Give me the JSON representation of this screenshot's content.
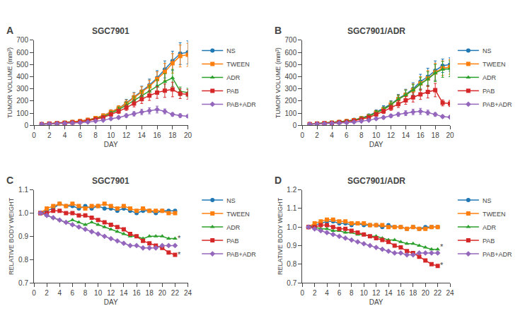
{
  "chart_data": [
    {
      "type": "line",
      "panel_label": "A",
      "title": "SGC7901",
      "xlabel": "DAY",
      "ylabel": "TUMOR VOLUME (mm³)",
      "xlim": [
        0,
        20
      ],
      "ylim": [
        0,
        700
      ],
      "xticks": [
        0,
        2,
        4,
        6,
        8,
        10,
        12,
        14,
        16,
        18,
        20
      ],
      "yticks": [
        0,
        100,
        200,
        300,
        400,
        500,
        600,
        700
      ],
      "grid": false,
      "legend": "right",
      "x": [
        1,
        2,
        3,
        4,
        5,
        6,
        7,
        8,
        9,
        10,
        11,
        12,
        13,
        14,
        15,
        16,
        17,
        18,
        19,
        20
      ],
      "series": [
        {
          "name": "NS",
          "marker": "circle",
          "values": [
            10,
            15,
            18,
            22,
            28,
            35,
            45,
            60,
            80,
            110,
            140,
            185,
            235,
            280,
            330,
            390,
            460,
            530,
            590,
            600
          ],
          "error": [
            3,
            4,
            4,
            5,
            6,
            7,
            8,
            10,
            13,
            18,
            22,
            28,
            35,
            42,
            50,
            60,
            70,
            80,
            90,
            95
          ]
        },
        {
          "name": "TWEEN",
          "marker": "square",
          "values": [
            10,
            15,
            18,
            22,
            28,
            35,
            45,
            60,
            80,
            110,
            140,
            180,
            230,
            275,
            320,
            380,
            440,
            510,
            570,
            580
          ],
          "error": [
            3,
            4,
            4,
            5,
            6,
            7,
            8,
            10,
            13,
            18,
            22,
            28,
            35,
            42,
            50,
            60,
            70,
            80,
            90,
            95
          ]
        },
        {
          "name": "ADR",
          "marker": "triangle-up",
          "values": [
            10,
            14,
            17,
            20,
            25,
            30,
            40,
            55,
            70,
            100,
            130,
            165,
            205,
            245,
            280,
            320,
            360,
            390,
            280,
            270
          ],
          "error": [
            2,
            3,
            3,
            4,
            5,
            6,
            7,
            9,
            12,
            16,
            20,
            25,
            30,
            38,
            45,
            55,
            65,
            70,
            35,
            35
          ]
        },
        {
          "name": "PAB",
          "marker": "square",
          "values": [
            10,
            14,
            17,
            20,
            24,
            30,
            38,
            50,
            65,
            90,
            115,
            145,
            180,
            215,
            245,
            270,
            285,
            295,
            260,
            255
          ],
          "error": [
            2,
            3,
            3,
            4,
            5,
            6,
            7,
            9,
            11,
            15,
            18,
            22,
            28,
            35,
            40,
            48,
            55,
            60,
            40,
            40
          ]
        },
        {
          "name": "PAB+ADR",
          "marker": "diamond",
          "values": [
            10,
            12,
            14,
            16,
            19,
            22,
            27,
            35,
            42,
            55,
            65,
            80,
            95,
            110,
            120,
            130,
            115,
            90,
            80,
            75
          ],
          "error": [
            2,
            2,
            3,
            3,
            4,
            4,
            5,
            6,
            8,
            10,
            12,
            15,
            18,
            22,
            25,
            28,
            20,
            15,
            15,
            12
          ]
        }
      ],
      "annotations": [
        {
          "text": "**",
          "x": 20.15,
          "y": 270
        },
        {
          "text": "*",
          "x": 20.15,
          "y": 90
        }
      ]
    },
    {
      "type": "line",
      "panel_label": "B",
      "title": "SGC7901/ADR",
      "xlabel": "DAY",
      "ylabel": "TUMOR VOLUME (mm³)",
      "xlim": [
        0,
        20
      ],
      "ylim": [
        0,
        700
      ],
      "xticks": [
        0,
        2,
        4,
        6,
        8,
        10,
        12,
        14,
        16,
        18,
        20
      ],
      "yticks": [
        0,
        100,
        200,
        300,
        400,
        500,
        600,
        700
      ],
      "grid": false,
      "legend": "right",
      "x": [
        1,
        2,
        3,
        4,
        5,
        6,
        7,
        8,
        9,
        10,
        11,
        12,
        13,
        14,
        15,
        16,
        17,
        18,
        19,
        20
      ],
      "series": [
        {
          "name": "NS",
          "marker": "circle",
          "values": [
            10,
            15,
            18,
            22,
            28,
            35,
            45,
            60,
            80,
            110,
            140,
            175,
            220,
            255,
            300,
            360,
            400,
            450,
            490,
            500
          ],
          "error": [
            3,
            4,
            4,
            5,
            6,
            7,
            8,
            10,
            13,
            18,
            22,
            28,
            35,
            42,
            50,
            60,
            70,
            80,
            55,
            55
          ]
        },
        {
          "name": "TWEEN",
          "marker": "square",
          "values": [
            10,
            15,
            18,
            22,
            28,
            35,
            43,
            58,
            75,
            105,
            130,
            170,
            215,
            250,
            290,
            345,
            385,
            435,
            470,
            480
          ],
          "error": [
            3,
            4,
            4,
            5,
            6,
            7,
            8,
            10,
            13,
            18,
            22,
            28,
            35,
            42,
            50,
            55,
            65,
            75,
            60,
            60
          ]
        },
        {
          "name": "ADR",
          "marker": "triangle-up",
          "values": [
            10,
            15,
            18,
            22,
            28,
            35,
            43,
            58,
            75,
            105,
            130,
            170,
            215,
            250,
            290,
            340,
            380,
            430,
            460,
            465
          ],
          "error": [
            3,
            4,
            4,
            5,
            6,
            7,
            8,
            10,
            12,
            16,
            20,
            25,
            30,
            38,
            45,
            52,
            60,
            70,
            65,
            65
          ]
        },
        {
          "name": "PAB",
          "marker": "square",
          "values": [
            10,
            14,
            17,
            20,
            25,
            30,
            38,
            50,
            65,
            90,
            115,
            145,
            175,
            205,
            230,
            255,
            275,
            290,
            185,
            180
          ],
          "error": [
            2,
            3,
            3,
            4,
            5,
            6,
            7,
            9,
            11,
            15,
            18,
            22,
            28,
            32,
            38,
            42,
            50,
            55,
            25,
            25
          ]
        },
        {
          "name": "PAB+ADR",
          "marker": "diamond",
          "values": [
            10,
            12,
            14,
            16,
            19,
            22,
            27,
            35,
            42,
            55,
            65,
            78,
            90,
            100,
            110,
            115,
            105,
            90,
            72,
            68
          ],
          "error": [
            2,
            2,
            3,
            3,
            4,
            4,
            5,
            6,
            8,
            10,
            12,
            14,
            16,
            20,
            22,
            25,
            20,
            15,
            12,
            10
          ]
        }
      ],
      "annotations": [
        {
          "text": "*",
          "x": 20.15,
          "y": 410
        },
        {
          "text": "*",
          "x": 20.15,
          "y": 185
        },
        {
          "text": "*",
          "x": 20.15,
          "y": 72
        }
      ]
    },
    {
      "type": "line",
      "panel_label": "C",
      "title": "SGC7901",
      "xlabel": "DAY",
      "ylabel": "RELATIVE BODY WEIGHT",
      "xlim": [
        0,
        24
      ],
      "ylim": [
        0.7,
        1.1
      ],
      "xticks": [
        0,
        2,
        4,
        6,
        8,
        10,
        12,
        14,
        16,
        18,
        20,
        22,
        24
      ],
      "yticks": [
        0.7,
        0.8,
        0.9,
        {
          "value": 1.0,
          "label": "1.0"
        },
        1.1
      ],
      "grid": false,
      "legend": "right",
      "x": [
        1,
        2,
        3,
        4,
        5,
        6,
        7,
        8,
        9,
        10,
        11,
        12,
        13,
        14,
        15,
        16,
        17,
        18,
        19,
        20,
        21,
        22
      ],
      "series": [
        {
          "name": "NS",
          "marker": "circle",
          "values": [
            1.0,
            1.01,
            1.02,
            1.04,
            1.03,
            1.03,
            1.02,
            1.03,
            1.02,
            1.03,
            1.02,
            1.02,
            1.01,
            1.02,
            1.01,
            1.0,
            1.01,
            1.01,
            1.0,
            1.01,
            1.01,
            1.01
          ]
        },
        {
          "name": "TWEEN",
          "marker": "square",
          "values": [
            1.0,
            1.02,
            1.03,
            1.04,
            1.03,
            1.04,
            1.03,
            1.02,
            1.03,
            1.03,
            1.04,
            1.03,
            1.02,
            1.03,
            1.02,
            1.01,
            1.02,
            1.01,
            1.01,
            1.01,
            1.0,
            1.0
          ]
        },
        {
          "name": "ADR",
          "marker": "triangle-up",
          "values": [
            1.0,
            0.99,
            0.98,
            0.97,
            0.96,
            0.97,
            0.96,
            0.95,
            0.96,
            0.95,
            0.94,
            0.93,
            0.92,
            0.91,
            0.9,
            0.9,
            0.89,
            0.9,
            0.9,
            0.9,
            0.89,
            0.89
          ]
        },
        {
          "name": "PAB",
          "marker": "square",
          "values": [
            1.0,
            1.0,
            1.01,
            1.01,
            1.0,
            1.0,
            0.99,
            0.99,
            0.98,
            0.97,
            0.96,
            0.95,
            0.94,
            0.93,
            0.91,
            0.9,
            0.88,
            0.87,
            0.86,
            0.85,
            0.83,
            0.82
          ]
        },
        {
          "name": "PAB+ADR",
          "marker": "diamond",
          "values": [
            1.0,
            0.99,
            0.98,
            0.97,
            0.96,
            0.95,
            0.94,
            0.93,
            0.92,
            0.91,
            0.9,
            0.89,
            0.88,
            0.87,
            0.86,
            0.86,
            0.85,
            0.85,
            0.85,
            0.86,
            0.86,
            0.86
          ]
        }
      ],
      "annotations": [
        {
          "text": "*",
          "x": 22.2,
          "y": 0.893
        },
        {
          "text": "*",
          "x": 22.2,
          "y": 0.822
        }
      ]
    },
    {
      "type": "line",
      "panel_label": "D",
      "title": "SGC7901/ADR",
      "xlabel": "DAY",
      "ylabel": "RELATIVE BODY WEIGHT",
      "xlim": [
        0,
        24
      ],
      "ylim": [
        0.7,
        1.2
      ],
      "xticks": [
        0,
        2,
        4,
        6,
        8,
        10,
        12,
        14,
        16,
        18,
        20,
        22,
        24
      ],
      "yticks": [
        0.7,
        0.8,
        0.9,
        {
          "value": 1.0,
          "label": "1.0"
        },
        1.1,
        1.2
      ],
      "grid": false,
      "legend": "right",
      "x": [
        1,
        2,
        3,
        4,
        5,
        6,
        7,
        8,
        9,
        10,
        11,
        12,
        13,
        14,
        15,
        16,
        17,
        18,
        19,
        20,
        21,
        22
      ],
      "series": [
        {
          "name": "NS",
          "marker": "circle",
          "values": [
            1.0,
            1.01,
            1.02,
            1.03,
            1.03,
            1.02,
            1.02,
            1.01,
            1.02,
            1.01,
            1.01,
            1.01,
            1.0,
            1.01,
            1.0,
            1.0,
            0.99,
            1.0,
            0.99,
            1.0,
            1.0,
            1.0
          ]
        },
        {
          "name": "TWEEN",
          "marker": "square",
          "values": [
            1.0,
            1.02,
            1.03,
            1.04,
            1.04,
            1.03,
            1.03,
            1.02,
            1.02,
            1.02,
            1.01,
            1.01,
            1.01,
            1.0,
            1.0,
            1.0,
            0.99,
            1.0,
            0.99,
            0.99,
            1.0,
            1.0
          ]
        },
        {
          "name": "ADR",
          "marker": "triangle-up",
          "values": [
            1.0,
            1.0,
            0.99,
            0.99,
            0.98,
            0.98,
            0.97,
            0.97,
            0.96,
            0.96,
            0.95,
            0.95,
            0.94,
            0.93,
            0.93,
            0.92,
            0.91,
            0.91,
            0.9,
            0.89,
            0.88,
            0.88
          ]
        },
        {
          "name": "PAB",
          "marker": "square",
          "values": [
            1.0,
            1.0,
            1.01,
            1.01,
            1.0,
            0.99,
            0.99,
            0.98,
            0.97,
            0.96,
            0.95,
            0.94,
            0.93,
            0.92,
            0.9,
            0.89,
            0.87,
            0.86,
            0.84,
            0.82,
            0.8,
            0.79
          ]
        },
        {
          "name": "PAB+ADR",
          "marker": "diamond",
          "values": [
            1.0,
            0.99,
            0.98,
            0.97,
            0.96,
            0.95,
            0.94,
            0.93,
            0.92,
            0.91,
            0.9,
            0.89,
            0.88,
            0.87,
            0.86,
            0.86,
            0.85,
            0.85,
            0.86,
            0.86,
            0.86,
            0.86
          ]
        }
      ],
      "annotations": [
        {
          "text": "*",
          "x": 22.2,
          "y": 0.893
        },
        {
          "text": "*",
          "x": 22.2,
          "y": 0.795
        }
      ]
    }
  ]
}
